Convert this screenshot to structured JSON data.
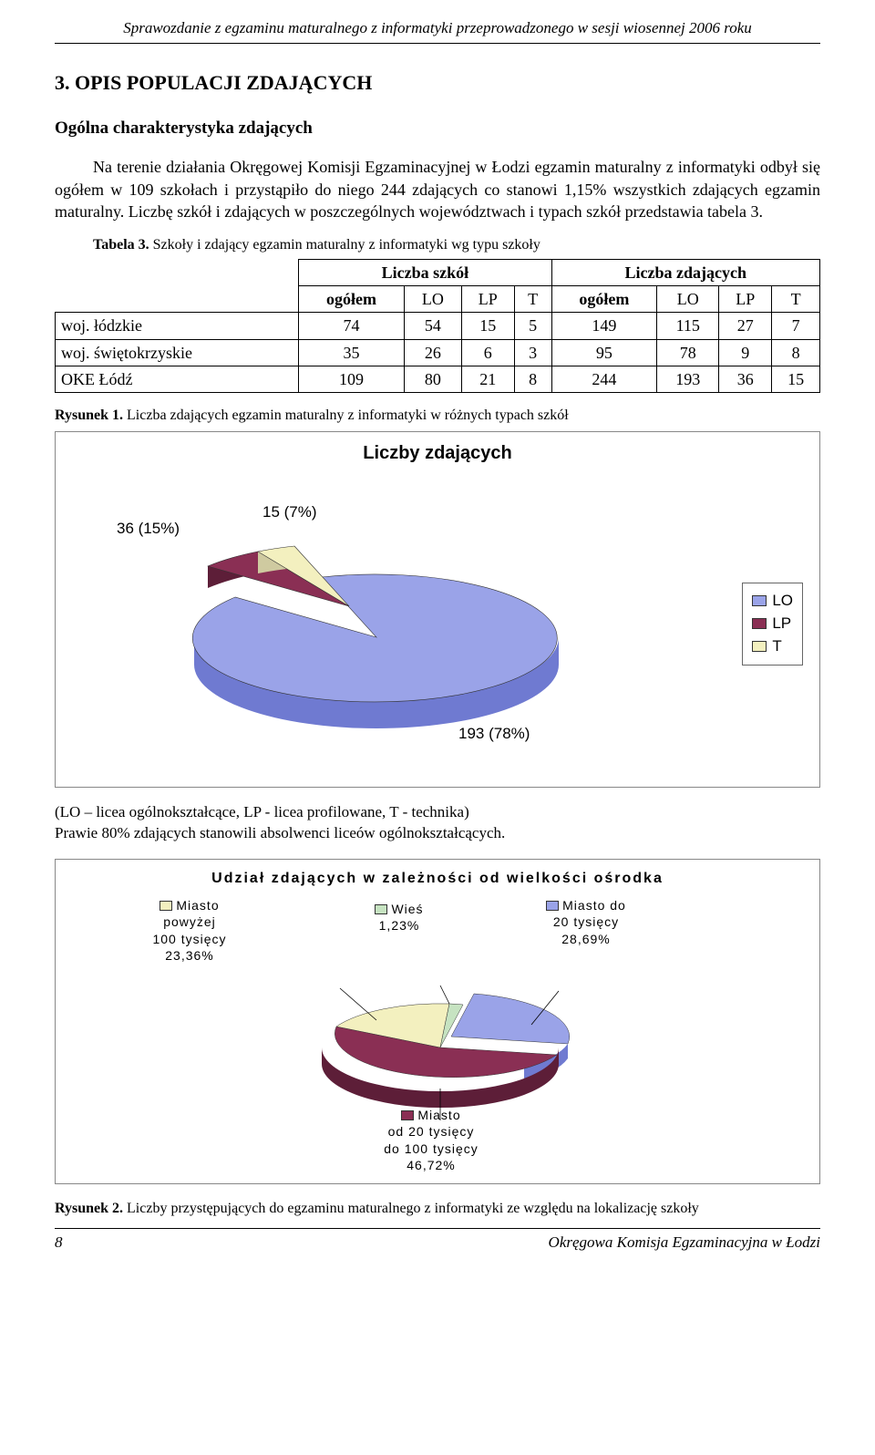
{
  "header": "Sprawozdanie z egzaminu maturalnego z informatyki przeprowadzonego w sesji wiosennej 2006 roku",
  "section_heading": "3. OPIS POPULACJI ZDAJĄCYCH",
  "sub_heading": "Ogólna charakterystyka zdających",
  "para1": "Na terenie działania Okręgowej Komisji Egzaminacyjnej w Łodzi egzamin maturalny z informatyki odbył się ogółem w 109 szkołach i przystąpiło do niego 244 zdających co stanowi 1,15% wszystkich zdających egzamin maturalny. Liczbę szkół i zdających w poszczególnych województwach i typach szkół przedstawia tabela 3.",
  "table3": {
    "caption_bold": "Tabela 3.",
    "caption_rest": " Szkoły i zdający egzamin maturalny z informatyki wg typu szkoły",
    "group_headers": [
      "Liczba szkół",
      "Liczba zdających"
    ],
    "sub_headers": [
      "ogółem",
      "LO",
      "LP",
      "T",
      "ogółem",
      "LO",
      "LP",
      "T"
    ],
    "rows": [
      {
        "label": "woj. łódzkie",
        "vals": [
          "74",
          "54",
          "15",
          "5",
          "149",
          "115",
          "27",
          "7"
        ]
      },
      {
        "label": "woj. świętokrzyskie",
        "vals": [
          "35",
          "26",
          "6",
          "3",
          "95",
          "78",
          "9",
          "8"
        ]
      },
      {
        "label": "OKE Łódź",
        "vals": [
          "109",
          "80",
          "21",
          "8",
          "244",
          "193",
          "36",
          "15"
        ]
      }
    ]
  },
  "fig1": {
    "caption_bold": "Rysunek 1.",
    "caption_rest": " Liczba zdających egzamin maturalny z informatyki w różnych typach szkół",
    "chart_title": "Liczby zdających",
    "type": "pie-3d",
    "slices": [
      {
        "name": "LO",
        "value": 193,
        "pct": "78%",
        "color": "#9aa3e8",
        "side": "#6f7ad1"
      },
      {
        "name": "LP",
        "value": 36,
        "pct": "15%",
        "color": "#8a2f54",
        "side": "#5d1e38"
      },
      {
        "name": "T",
        "value": 15,
        "pct": "7%",
        "color": "#f3f0bf",
        "side": "#cfcaa0"
      }
    ],
    "labels": {
      "lp": "36 (15%)",
      "t": "15 (7%)",
      "lo": "193 (78%)"
    },
    "legend": [
      "LO",
      "LP",
      "T"
    ],
    "legend_colors": [
      "#9aa3e8",
      "#8a2f54",
      "#f3f0bf"
    ],
    "background": "#ffffff",
    "frame_border": "#888888"
  },
  "footnote": "(LO – licea ogólnokształcące, LP - licea profilowane, T - technika)\nPrawie 80% zdających stanowili absolwenci liceów ogólnokształcących.",
  "fig2": {
    "chart_title": "Udział zdających w zależności od wielkości ośrodka",
    "type": "pie-3d",
    "slices": [
      {
        "name": "Miasto do 20 tysięcy",
        "pct": "28,69%",
        "color": "#9aa3e8",
        "side": "#6f7ad1"
      },
      {
        "name": "Miasto od 20 tysięcy do 100 tysięcy",
        "pct": "46,72%",
        "color": "#8a2f54",
        "side": "#5d1e38"
      },
      {
        "name": "Miasto powyżej 100 tysięcy",
        "pct": "23,36%",
        "color": "#f3f0bf",
        "side": "#cfcaa0"
      },
      {
        "name": "Wieś",
        "pct": "1,23%",
        "color": "#c6e3c1",
        "side": "#9abf95"
      }
    ],
    "callouts": {
      "pow100": {
        "line1": "Miasto",
        "line2": "powyżej",
        "line3": "100 tysięcy",
        "line4": "23,36%",
        "color": "#f3f0bf"
      },
      "wies": {
        "line1": "Wieś",
        "line2": "1,23%",
        "color": "#c6e3c1"
      },
      "do20": {
        "line1": "Miasto do",
        "line2": "20 tysięcy",
        "line3": "28,69%",
        "color": "#9aa3e8"
      },
      "od20do100": {
        "line1": "Miasto",
        "line2": "od 20 tysięcy",
        "line3": "do 100 tysięcy",
        "line4": "46,72%",
        "color": "#8a2f54"
      }
    },
    "caption_bold": "Rysunek 2.",
    "caption_rest": " Liczby przystępujących do egzaminu maturalnego z informatyki ze względu na lokalizację szkoły",
    "background": "#ffffff"
  },
  "footer": {
    "page": "8",
    "org": "Okręgowa Komisja Egzaminacyjna w Łodzi"
  }
}
